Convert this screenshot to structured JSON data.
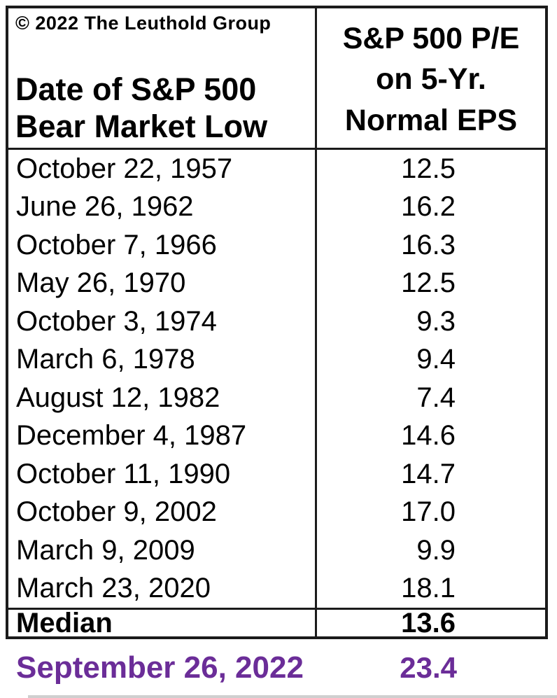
{
  "copyright": "© 2022 The Leuthold Group",
  "table": {
    "col1_header": "Date of S&P 500\nBear Market Low",
    "col2_header": "S&P 500 P/E\non 5-Yr.\nNormal EPS",
    "rows": [
      {
        "date": "October 22, 1957",
        "value": "12.5"
      },
      {
        "date": "June 26, 1962",
        "value": "16.2"
      },
      {
        "date": "October 7, 1966",
        "value": "16.3"
      },
      {
        "date": "May 26, 1970",
        "value": "12.5"
      },
      {
        "date": "October 3, 1974",
        "value": "9.3"
      },
      {
        "date": "March 6, 1978",
        "value": "9.4"
      },
      {
        "date": "August 12, 1982",
        "value": "7.4"
      },
      {
        "date": "December 4, 1987",
        "value": "14.6"
      },
      {
        "date": "October 11, 1990",
        "value": "14.7"
      },
      {
        "date": "October 9, 2002",
        "value": "17.0"
      },
      {
        "date": "March 9, 2009",
        "value": "9.9"
      },
      {
        "date": "March 23, 2020",
        "value": "18.1"
      }
    ],
    "median_label": "Median",
    "median_value": "13.6"
  },
  "highlight_row": {
    "date": "September 26, 2022",
    "value": "23.4"
  },
  "colors": {
    "text": "#000000",
    "border": "#1b1b1b",
    "highlight": "#6B2D98",
    "background": "#ffffff"
  },
  "chart_data": {
    "type": "table",
    "columns": [
      "Date of S&P 500 Bear Market Low",
      "S&P 500 P/E on 5-Yr. Normal EPS"
    ],
    "rows": [
      [
        "October 22, 1957",
        12.5
      ],
      [
        "June 26, 1962",
        16.2
      ],
      [
        "October 7, 1966",
        16.3
      ],
      [
        "May 26, 1970",
        12.5
      ],
      [
        "October 3, 1974",
        9.3
      ],
      [
        "March 6, 1978",
        9.4
      ],
      [
        "August 12, 1982",
        7.4
      ],
      [
        "December 4, 1987",
        14.6
      ],
      [
        "October 11, 1990",
        14.7
      ],
      [
        "October 9, 2002",
        17.0
      ],
      [
        "March 9, 2009",
        9.9
      ],
      [
        "March 23, 2020",
        18.1
      ]
    ],
    "summary_rows": [
      {
        "label": "Median",
        "value": 13.6
      },
      {
        "label": "September 26, 2022",
        "value": 23.4,
        "style": "purple-highlight"
      }
    ],
    "source_note": "© 2022 The Leuthold Group"
  }
}
